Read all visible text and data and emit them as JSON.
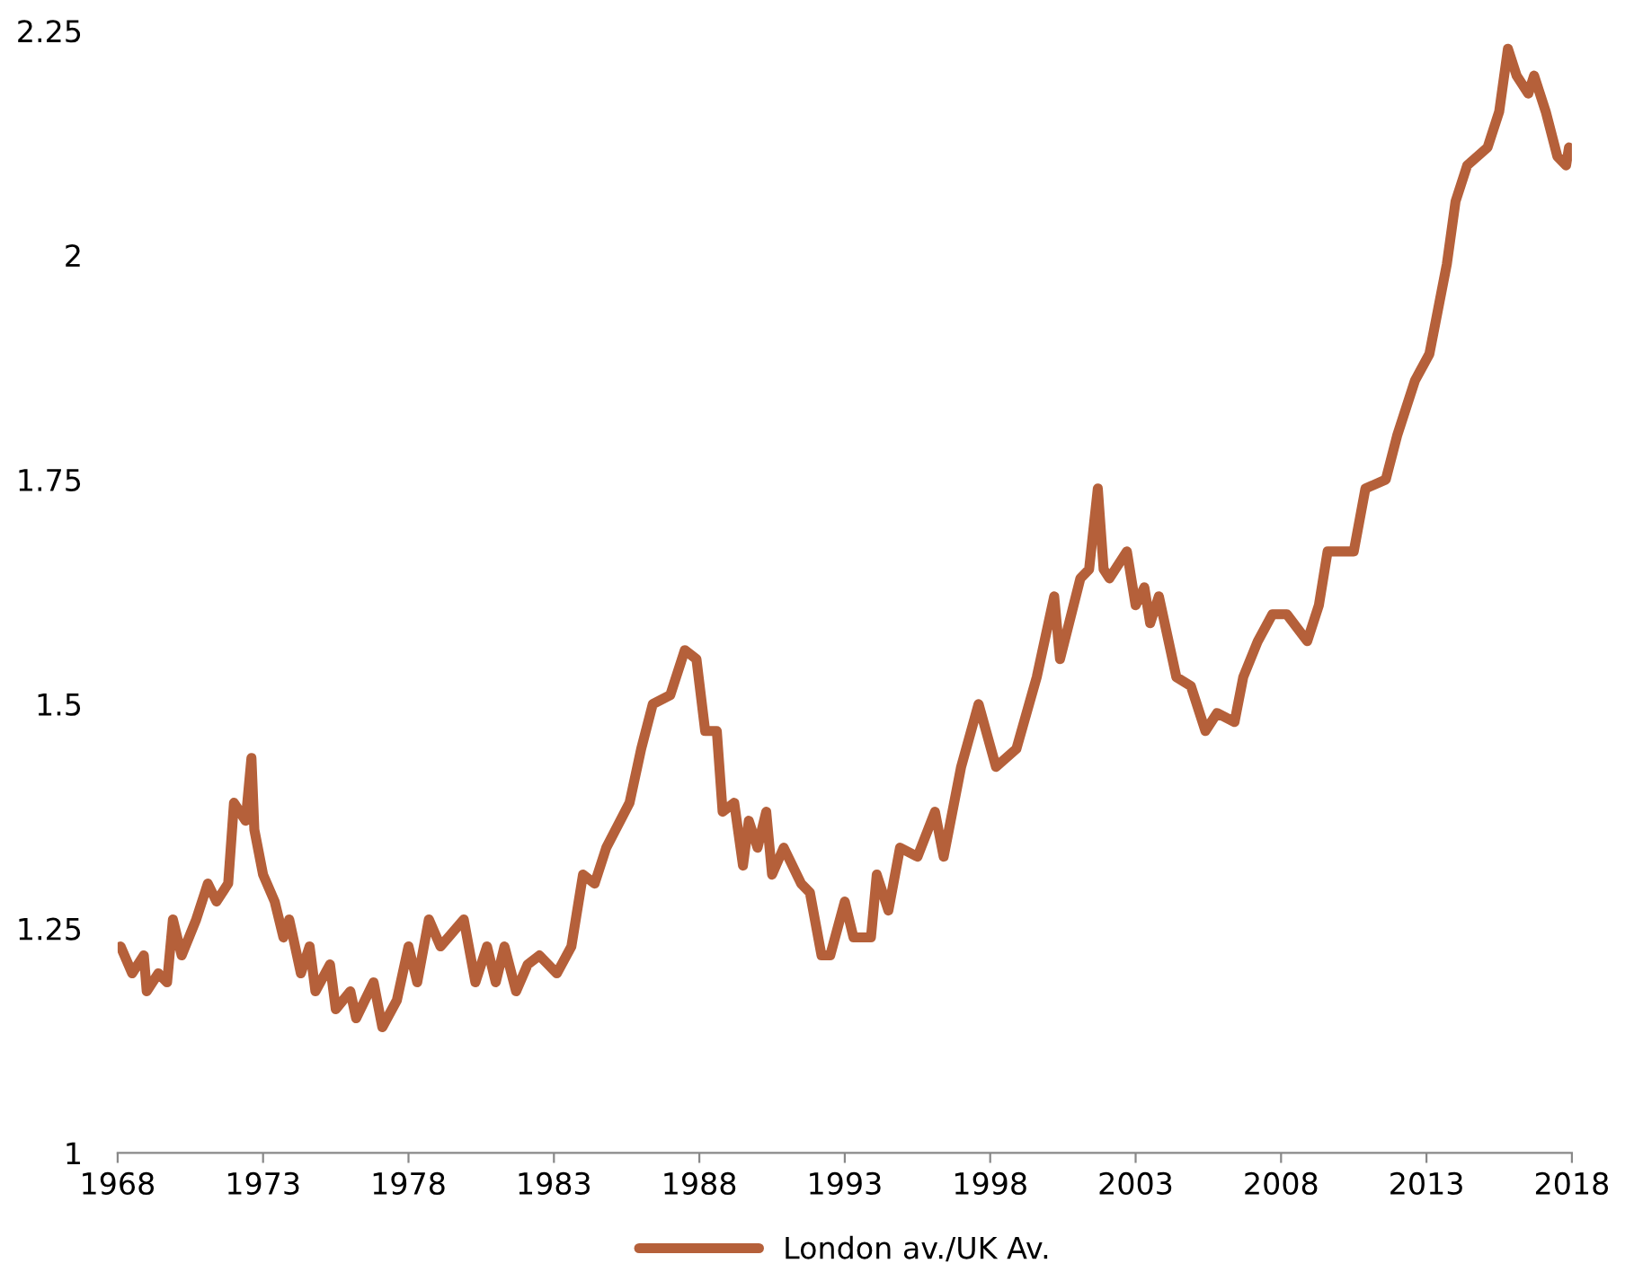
{
  "chart_data": {
    "type": "line",
    "xlim": [
      1968,
      2018
    ],
    "xticks": [
      1968,
      1973,
      1978,
      1983,
      1988,
      1993,
      1998,
      2003,
      2008,
      2013,
      2018
    ],
    "ylim": [
      1,
      2.25
    ],
    "yticks": [
      1,
      1.25,
      1.5,
      1.75,
      2,
      2.25
    ],
    "grid": false,
    "legend": "bottom",
    "line_style": "solid",
    "marker": "none",
    "series": [
      {
        "name": "London av./UK Av.",
        "color": "#b5603a",
        "x": [
          1968.1,
          1968.5,
          1968.9,
          1969.0,
          1969.4,
          1969.7,
          1969.9,
          1970.2,
          1970.7,
          1971.1,
          1971.4,
          1971.8,
          1972.0,
          1972.4,
          1972.6,
          1972.7,
          1973.0,
          1973.4,
          1973.7,
          1973.9,
          1974.3,
          1974.6,
          1974.8,
          1975.3,
          1975.5,
          1976.0,
          1976.2,
          1976.8,
          1977.1,
          1977.6,
          1978.0,
          1978.3,
          1978.7,
          1979.1,
          1979.9,
          1980.3,
          1980.7,
          1981.0,
          1981.3,
          1981.7,
          1982.1,
          1982.5,
          1983.1,
          1983.6,
          1984.0,
          1984.4,
          1984.8,
          1985.6,
          1986.0,
          1986.4,
          1987.0,
          1987.5,
          1987.9,
          1988.2,
          1988.6,
          1988.8,
          1989.2,
          1989.5,
          1989.7,
          1990.0,
          1990.3,
          1990.5,
          1990.9,
          1991.5,
          1991.8,
          1992.2,
          1992.5,
          1993.0,
          1993.3,
          1993.9,
          1994.1,
          1994.5,
          1994.9,
          1995.5,
          1996.1,
          1996.4,
          1997.0,
          1997.6,
          1998.2,
          1998.9,
          1999.6,
          2000.2,
          2000.4,
          2001.1,
          2001.4,
          2001.7,
          2001.9,
          2002.1,
          2002.7,
          2003.0,
          2003.3,
          2003.5,
          2003.8,
          2004.4,
          2004.9,
          2005.4,
          2005.8,
          2006.4,
          2006.7,
          2007.2,
          2007.7,
          2008.2,
          2008.9,
          2009.3,
          2009.6,
          2010.5,
          2010.9,
          2011.6,
          2012.0,
          2012.6,
          2013.1,
          2013.4,
          2013.7,
          2014.0,
          2014.4,
          2015.1,
          2015.5,
          2015.8,
          2016.1,
          2016.5,
          2016.7,
          2017.1,
          2017.5,
          2017.8,
          2017.9
        ],
        "values": [
          1.23,
          1.2,
          1.22,
          1.18,
          1.2,
          1.19,
          1.26,
          1.22,
          1.26,
          1.3,
          1.28,
          1.3,
          1.39,
          1.37,
          1.44,
          1.36,
          1.31,
          1.28,
          1.24,
          1.26,
          1.2,
          1.23,
          1.18,
          1.21,
          1.16,
          1.18,
          1.15,
          1.19,
          1.14,
          1.17,
          1.23,
          1.19,
          1.26,
          1.23,
          1.26,
          1.19,
          1.23,
          1.19,
          1.23,
          1.18,
          1.21,
          1.22,
          1.2,
          1.23,
          1.31,
          1.3,
          1.34,
          1.39,
          1.45,
          1.5,
          1.51,
          1.56,
          1.55,
          1.47,
          1.47,
          1.38,
          1.39,
          1.32,
          1.37,
          1.34,
          1.38,
          1.31,
          1.34,
          1.3,
          1.29,
          1.22,
          1.22,
          1.28,
          1.24,
          1.24,
          1.31,
          1.27,
          1.34,
          1.33,
          1.38,
          1.33,
          1.43,
          1.5,
          1.43,
          1.45,
          1.53,
          1.62,
          1.55,
          1.64,
          1.65,
          1.74,
          1.65,
          1.64,
          1.67,
          1.61,
          1.63,
          1.59,
          1.62,
          1.53,
          1.52,
          1.47,
          1.49,
          1.48,
          1.53,
          1.57,
          1.6,
          1.6,
          1.57,
          1.61,
          1.67,
          1.67,
          1.74,
          1.75,
          1.8,
          1.86,
          1.89,
          1.94,
          1.99,
          2.06,
          2.1,
          2.12,
          2.16,
          2.23,
          2.2,
          2.18,
          2.2,
          2.16,
          2.11,
          2.1,
          2.12
        ]
      }
    ]
  }
}
